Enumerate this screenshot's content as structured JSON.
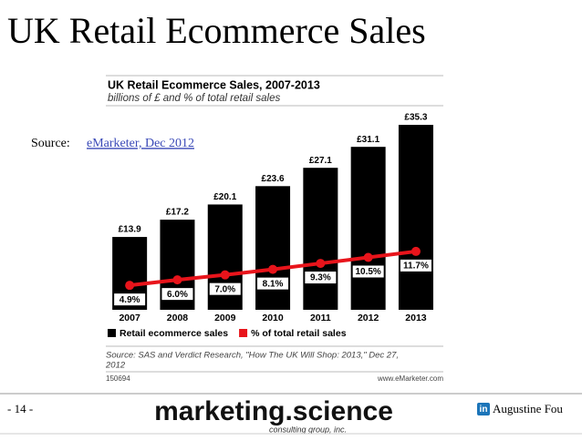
{
  "slide": {
    "title": "UK Retail Ecommerce Sales",
    "source_label": "Source:",
    "source_link": "eMarketer, Dec 2012",
    "page": "- 14 -",
    "brand": "marketing.science",
    "brand_sub": "consulting group, inc.",
    "linkedin_icon": "in",
    "author": "Augustine Fou"
  },
  "chart_data": {
    "type": "bar",
    "title": "UK Retail Ecommerce Sales, 2007-2013",
    "subtitle": "billions of £ and % of total retail sales",
    "categories": [
      "2007",
      "2008",
      "2009",
      "2010",
      "2011",
      "2012",
      "2013"
    ],
    "series": [
      {
        "name": "Retail ecommerce sales",
        "type": "bar",
        "color": "#000000",
        "values": [
          13.9,
          17.2,
          20.1,
          23.6,
          27.1,
          31.1,
          35.3
        ],
        "value_labels": [
          "£13.9",
          "£17.2",
          "£20.1",
          "£23.6",
          "£27.1",
          "£31.1",
          "£35.3"
        ]
      },
      {
        "name": "% of total retail sales",
        "type": "line",
        "axis": "y2",
        "color": "#e8141b",
        "values": [
          4.9,
          6.0,
          7.0,
          8.1,
          9.3,
          10.5,
          11.7
        ],
        "value_labels": [
          "4.9%",
          "6.0%",
          "7.0%",
          "8.1%",
          "9.3%",
          "10.5%",
          "11.7%"
        ]
      }
    ],
    "ylim": [
      0,
      40
    ],
    "y2lim": [
      0,
      42
    ],
    "source": "Source: SAS and Verdict Research, \"How The UK Will Shop: 2013,\" Dec 27, 2012",
    "chart_id": "150694",
    "site": "www.eMarketer.com"
  }
}
